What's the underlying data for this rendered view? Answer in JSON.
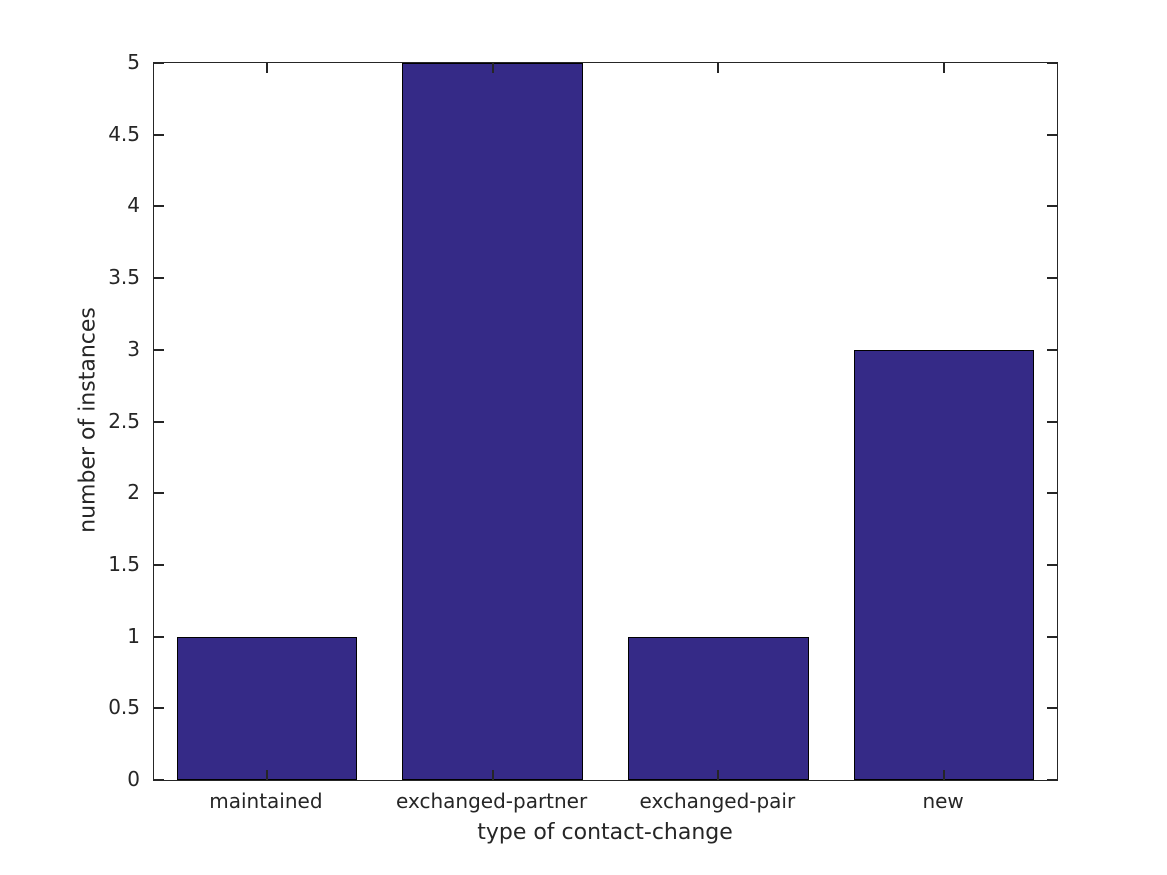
{
  "chart_data": {
    "type": "bar",
    "title": "",
    "categories": [
      "maintained",
      "exchanged-partner",
      "exchanged-pair",
      "new"
    ],
    "values": [
      1,
      5,
      1,
      3
    ],
    "xlabel": "type of contact-change",
    "ylabel": "number of instances",
    "ylim": [
      0,
      5
    ],
    "ytick_step": 0.5,
    "ytick_labels": [
      "0",
      "0.5",
      "1",
      "1.5",
      "2",
      "2.5",
      "3",
      "3.5",
      "4",
      "4.5",
      "5"
    ],
    "bar_width_fraction": 0.8,
    "grid": false,
    "legend": null,
    "tick_direction": "in",
    "colors": {
      "bar_fill": "#352A87",
      "bar_edge": "#000000",
      "axis": "#262626",
      "text": "#262626",
      "background": "#ffffff"
    }
  }
}
